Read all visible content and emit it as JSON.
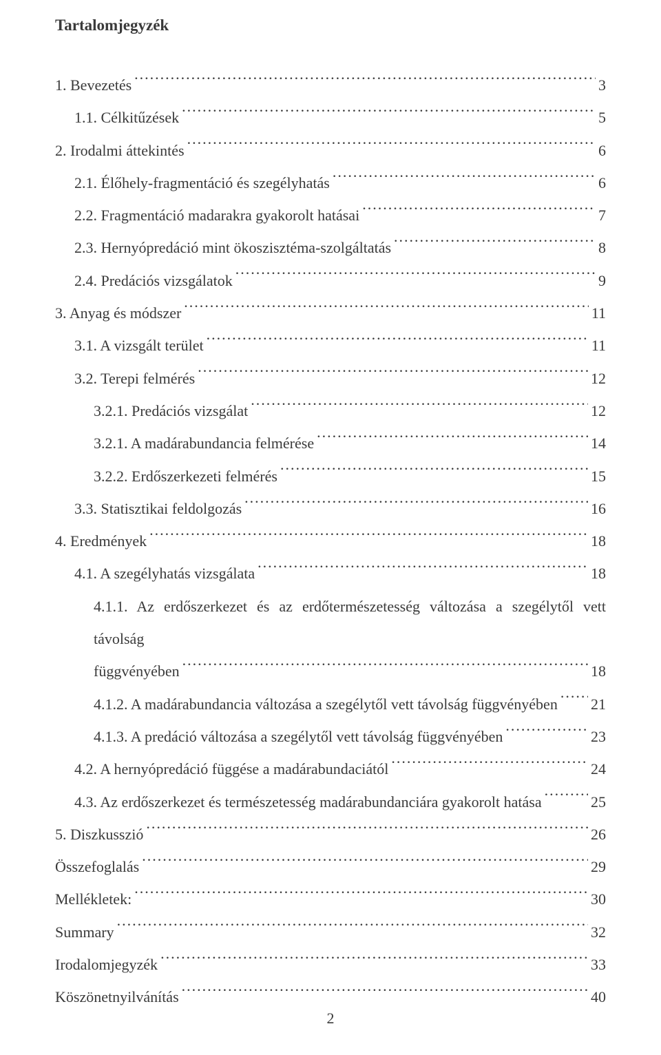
{
  "title": "Tartalomjegyzék",
  "page_number": "2",
  "entries": [
    {
      "label": "1. Bevezetés",
      "page": "3",
      "indent": 0
    },
    {
      "label": "1.1. Célkitűzések",
      "page": "5",
      "indent": 1
    },
    {
      "label": "2. Irodalmi áttekintés",
      "page": "6",
      "indent": 0
    },
    {
      "label": "2.1. Élőhely-fragmentáció és szegélyhatás",
      "page": "6",
      "indent": 1
    },
    {
      "label": "2.2. Fragmentáció madarakra gyakorolt hatásai",
      "page": "7",
      "indent": 1
    },
    {
      "label": "2.3. Hernyópredáció mint ökoszisztéma-szolgáltatás",
      "page": "8",
      "indent": 1
    },
    {
      "label": "2.4. Predációs vizsgálatok",
      "page": "9",
      "indent": 1
    },
    {
      "label": "3. Anyag és módszer",
      "page": "11",
      "indent": 0
    },
    {
      "label": "3.1. A vizsgált terület",
      "page": "11",
      "indent": 1
    },
    {
      "label": "3.2. Terepi felmérés",
      "page": "12",
      "indent": 1
    },
    {
      "label": "3.2.1. Predációs vizsgálat",
      "page": "12",
      "indent": 2
    },
    {
      "label": "3.2.1. A madárabundancia felmérése",
      "page": "14",
      "indent": 2
    },
    {
      "label": "3.2.2. Erdőszerkezeti felmérés",
      "page": "15",
      "indent": 2
    },
    {
      "label": "3.3. Statisztikai feldolgozás",
      "page": "16",
      "indent": 1
    },
    {
      "label": "4. Eredmények",
      "page": "18",
      "indent": 0
    },
    {
      "label": "4.1. A szegélyhatás vizsgálata",
      "page": "18",
      "indent": 1
    },
    {
      "label_line1": "4.1.1. Az erdőszerkezet és az erdőtermészetesség változása a szegélytől vett távolság",
      "label_line2": "függvényében",
      "page": "18",
      "indent": 2,
      "multiline": true
    },
    {
      "label": "4.1.2. A madárabundancia változása a szegélytől vett távolság függvényében",
      "page": "21",
      "indent": 2
    },
    {
      "label": "4.1.3. A predáció változása a szegélytől vett távolság függvényében",
      "page": "23",
      "indent": 2
    },
    {
      "label": "4.2. A hernyópredáció függése a madárabundaciától",
      "page": "24",
      "indent": 1
    },
    {
      "label": "4.3. Az erdőszerkezet és természetesség madárabundanciára gyakorolt hatása",
      "page": "25",
      "indent": 1
    },
    {
      "label": "5. Diszkusszió",
      "page": "26",
      "indent": 0
    },
    {
      "label": "Összefoglalás",
      "page": "29",
      "indent": 0
    },
    {
      "label": "Mellékletek:",
      "page": "30",
      "indent": 0
    },
    {
      "label": "Summary",
      "page": "32",
      "indent": 0
    },
    {
      "label": "Irodalomjegyzék",
      "page": "33",
      "indent": 0
    },
    {
      "label": "Köszönetnyilvánítás",
      "page": "40",
      "indent": 0
    }
  ]
}
